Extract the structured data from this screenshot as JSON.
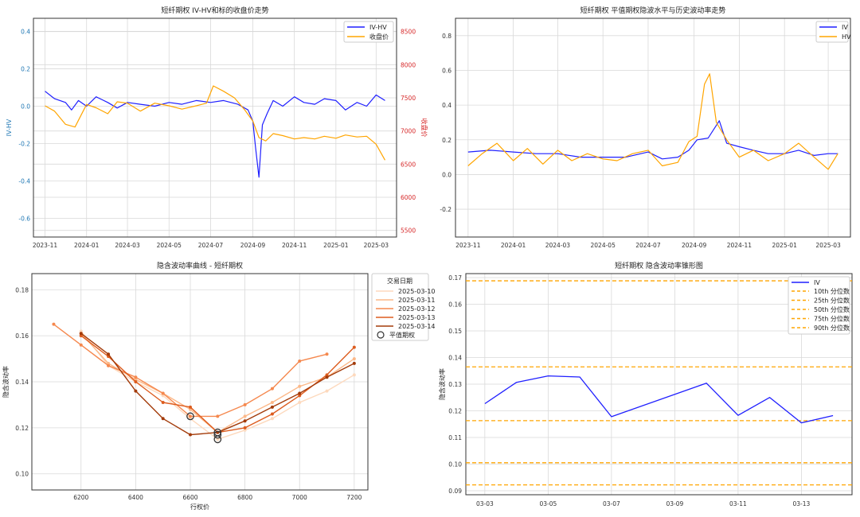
{
  "chart_data": [
    {
      "type": "line",
      "title": "短纤期权 IV-HV和标的收盘价走势",
      "ylabel": "IV-HV",
      "y2label": "收盘价",
      "xticks": [
        "2023-11",
        "2024-01",
        "2024-03",
        "2024-05",
        "2024-07",
        "2024-09",
        "2024-11",
        "2025-01",
        "2025-03"
      ],
      "ylim": [
        -0.7,
        0.47
      ],
      "yticks": [
        -0.6,
        -0.4,
        -0.2,
        0.0,
        0.2,
        0.4
      ],
      "ytick_labels": [
        "-0.6",
        "-0.4",
        "-0.2",
        "0.0",
        "0.2",
        "0.4"
      ],
      "y2lim": [
        5400,
        8700
      ],
      "y2ticks": [
        5500,
        6000,
        6500,
        7000,
        7500,
        8000,
        8500
      ],
      "legend": [
        "IV-HV",
        "收盘价"
      ],
      "legend_loc": "upper right",
      "grid": true,
      "series": [
        {
          "name": "IV-HV",
          "color": "#1f1fff",
          "axis": "left",
          "x": [
            "2023-11-01",
            "2023-11-15",
            "2023-12-01",
            "2023-12-10",
            "2023-12-20",
            "2024-01-01",
            "2024-01-15",
            "2024-02-01",
            "2024-02-15",
            "2024-03-01",
            "2024-03-20",
            "2024-04-10",
            "2024-05-01",
            "2024-05-20",
            "2024-06-10",
            "2024-07-01",
            "2024-07-20",
            "2024-08-10",
            "2024-08-25",
            "2024-09-01",
            "2024-09-05",
            "2024-09-10",
            "2024-09-15",
            "2024-09-22",
            "2024-10-01",
            "2024-10-15",
            "2024-11-01",
            "2024-11-15",
            "2024-12-01",
            "2024-12-15",
            "2025-01-01",
            "2025-01-15",
            "2025-02-01",
            "2025-02-15",
            "2025-03-01",
            "2025-03-14"
          ],
          "y": [
            0.08,
            0.04,
            0.02,
            -0.02,
            0.03,
            0.0,
            0.05,
            0.02,
            -0.01,
            0.02,
            0.01,
            0.0,
            0.02,
            0.01,
            0.03,
            0.02,
            0.03,
            0.01,
            -0.02,
            -0.08,
            -0.22,
            -0.38,
            -0.1,
            -0.04,
            0.03,
            0.0,
            0.05,
            0.02,
            0.01,
            0.04,
            0.03,
            -0.02,
            0.02,
            0.0,
            0.06,
            0.03
          ]
        },
        {
          "name": "收盘价",
          "color": "#ffa500",
          "axis": "right",
          "x": [
            "2023-11-01",
            "2023-11-15",
            "2023-12-01",
            "2023-12-15",
            "2024-01-01",
            "2024-01-15",
            "2024-02-01",
            "2024-02-15",
            "2024-03-01",
            "2024-03-20",
            "2024-04-10",
            "2024-05-01",
            "2024-05-20",
            "2024-06-10",
            "2024-06-25",
            "2024-07-05",
            "2024-07-20",
            "2024-08-05",
            "2024-08-20",
            "2024-09-01",
            "2024-09-10",
            "2024-09-20",
            "2024-10-01",
            "2024-10-15",
            "2024-11-01",
            "2024-11-15",
            "2024-12-01",
            "2024-12-15",
            "2025-01-01",
            "2025-01-15",
            "2025-02-01",
            "2025-02-15",
            "2025-03-01",
            "2025-03-14"
          ],
          "y": [
            7380,
            7300,
            7100,
            7060,
            7400,
            7350,
            7260,
            7440,
            7420,
            7300,
            7420,
            7380,
            7330,
            7380,
            7420,
            7680,
            7600,
            7500,
            7320,
            7150,
            6900,
            6850,
            6960,
            6930,
            6880,
            6900,
            6880,
            6920,
            6890,
            6940,
            6910,
            6920,
            6800,
            6560
          ]
        }
      ]
    },
    {
      "type": "line",
      "title": "短纤期权 平值期权隐波水平与历史波动率走势",
      "xticks": [
        "2023-11",
        "2024-01",
        "2024-03",
        "2024-05",
        "2024-07",
        "2024-09",
        "2024-11",
        "2025-01",
        "2025-03"
      ],
      "ylim": [
        -0.36,
        0.9
      ],
      "yticks": [
        -0.2,
        0.0,
        0.2,
        0.4,
        0.6,
        0.8
      ],
      "ytick_labels": [
        "-0.2",
        "0.0",
        "0.2",
        "0.4",
        "0.6",
        "0.8"
      ],
      "legend": [
        "IV",
        "HV"
      ],
      "legend_loc": "upper right",
      "grid": true,
      "series": [
        {
          "name": "IV",
          "color": "#1f1fff",
          "x": [
            "2023-11-01",
            "2023-12-01",
            "2024-01-01",
            "2024-02-01",
            "2024-03-01",
            "2024-04-01",
            "2024-05-01",
            "2024-06-01",
            "2024-07-01",
            "2024-07-20",
            "2024-08-10",
            "2024-08-25",
            "2024-09-05",
            "2024-09-20",
            "2024-10-05",
            "2024-10-15",
            "2024-11-01",
            "2024-11-20",
            "2024-12-10",
            "2025-01-01",
            "2025-01-20",
            "2025-02-10",
            "2025-03-01",
            "2025-03-14"
          ],
          "y": [
            0.13,
            0.14,
            0.13,
            0.12,
            0.12,
            0.1,
            0.1,
            0.1,
            0.13,
            0.09,
            0.1,
            0.14,
            0.2,
            0.21,
            0.31,
            0.18,
            0.16,
            0.14,
            0.12,
            0.12,
            0.14,
            0.11,
            0.12,
            0.12
          ]
        },
        {
          "name": "HV",
          "color": "#ffa500",
          "x": [
            "2023-11-01",
            "2023-11-20",
            "2023-12-10",
            "2024-01-01",
            "2024-01-20",
            "2024-02-10",
            "2024-03-01",
            "2024-03-20",
            "2024-04-10",
            "2024-05-01",
            "2024-05-20",
            "2024-06-10",
            "2024-07-01",
            "2024-07-20",
            "2024-08-10",
            "2024-08-25",
            "2024-09-05",
            "2024-09-15",
            "2024-09-22",
            "2024-10-01",
            "2024-10-15",
            "2024-11-01",
            "2024-11-20",
            "2024-12-10",
            "2025-01-01",
            "2025-01-20",
            "2025-02-10",
            "2025-03-01",
            "2025-03-14"
          ],
          "y": [
            0.05,
            0.12,
            0.18,
            0.08,
            0.15,
            0.06,
            0.14,
            0.08,
            0.12,
            0.09,
            0.08,
            0.12,
            0.14,
            0.05,
            0.07,
            0.19,
            0.22,
            0.52,
            0.58,
            0.3,
            0.2,
            0.1,
            0.14,
            0.08,
            0.12,
            0.18,
            0.1,
            0.03,
            0.12
          ]
        }
      ]
    },
    {
      "type": "line",
      "title": "隐含波动率曲线 - 短纤期权",
      "xlabel": "行权价",
      "ylabel": "隐含波动率",
      "xlim": [
        6020,
        7250
      ],
      "xticks": [
        6200,
        6400,
        6600,
        6800,
        7000,
        7200
      ],
      "ylim": [
        0.093,
        0.187
      ],
      "yticks": [
        0.1,
        0.12,
        0.14,
        0.16,
        0.18
      ],
      "ytick_labels": [
        "0.10",
        "0.12",
        "0.14",
        "0.16",
        "0.18"
      ],
      "legend_title": "交易日期",
      "legend_loc": "outside upper right",
      "legend_atm_label": "平值期权",
      "grid": true,
      "series": [
        {
          "name": "2025-03-10",
          "color": "#fdd9bd",
          "x": [
            6200,
            6300,
            6400,
            6500,
            6600,
            6700,
            6800,
            6900,
            7000,
            7100,
            7200
          ],
          "y": [
            0.162,
            0.147,
            0.14,
            0.134,
            0.124,
            0.115,
            0.119,
            0.124,
            0.131,
            0.136,
            0.143
          ]
        },
        {
          "name": "2025-03-11",
          "color": "#fcb888",
          "x": [
            6200,
            6300,
            6400,
            6500,
            6600,
            6700,
            6800,
            6900,
            7000,
            7100,
            7200
          ],
          "y": [
            0.161,
            0.148,
            0.141,
            0.135,
            0.128,
            0.118,
            0.125,
            0.131,
            0.138,
            0.142,
            0.15
          ]
        },
        {
          "name": "2025-03-12",
          "color": "#f5884e",
          "x": [
            6100,
            6200,
            6300,
            6400,
            6500,
            6600,
            6700,
            6800,
            6900,
            7000,
            7100
          ],
          "y": [
            0.165,
            0.156,
            0.147,
            0.142,
            0.135,
            0.125,
            0.125,
            0.13,
            0.137,
            0.149,
            0.152
          ]
        },
        {
          "name": "2025-03-13",
          "color": "#dd5c1e",
          "x": [
            6200,
            6300,
            6400,
            6500,
            6600,
            6700,
            6800,
            6900,
            7000,
            7100,
            7200
          ],
          "y": [
            0.16,
            0.151,
            0.14,
            0.131,
            0.129,
            0.118,
            0.12,
            0.126,
            0.134,
            0.143,
            0.155
          ]
        },
        {
          "name": "2025-03-14",
          "color": "#a33b0a",
          "x": [
            6200,
            6300,
            6400,
            6500,
            6600,
            6700,
            6800,
            6900,
            7000,
            7100,
            7200
          ],
          "y": [
            0.161,
            0.152,
            0.136,
            0.124,
            0.117,
            0.118,
            0.123,
            0.129,
            0.135,
            0.142,
            0.148
          ]
        }
      ],
      "atm_points": [
        {
          "x": 6600,
          "y": 0.125
        },
        {
          "x": 6700,
          "y": 0.118
        },
        {
          "x": 6700,
          "y": 0.117
        },
        {
          "x": 6700,
          "y": 0.115
        }
      ]
    },
    {
      "type": "line",
      "title": "短纤期权 隐含波动率锥形图",
      "ylabel": "隐含波动率",
      "categories": [
        "03-03",
        "03-04",
        "03-05",
        "03-06",
        "03-07",
        "03-08",
        "03-09",
        "03-10",
        "03-11",
        "03-12",
        "03-13",
        "03-14"
      ],
      "xticks": [
        "03-03",
        "03-05",
        "03-07",
        "03-09",
        "03-11",
        "03-13"
      ],
      "ylim": [
        0.0885,
        0.1715
      ],
      "yticks": [
        0.09,
        0.1,
        0.11,
        0.12,
        0.13,
        0.14,
        0.15,
        0.16,
        0.17
      ],
      "ytick_labels": [
        "0.09",
        "0.10",
        "0.11",
        "0.12",
        "0.13",
        "0.14",
        "0.15",
        "0.16",
        "0.17"
      ],
      "legend_loc": "upper right",
      "grid": true,
      "series": [
        {
          "name": "IV",
          "color": "#1f1fff",
          "x": [
            "03-03",
            "03-04",
            "03-05",
            "03-06",
            "03-07",
            "03-10",
            "03-11",
            "03-12",
            "03-13",
            "03-14"
          ],
          "y": [
            0.1227,
            0.1307,
            0.1331,
            0.1327,
            0.1178,
            0.1304,
            0.1183,
            0.125,
            0.1155,
            0.1182
          ]
        }
      ],
      "percentiles": [
        {
          "name": "10th 分位数",
          "value": 0.0922
        },
        {
          "name": "25th 分位数",
          "value": 0.1005
        },
        {
          "name": "50th 分位数",
          "value": 0.1163
        },
        {
          "name": "75th 分位数",
          "value": 0.1365
        },
        {
          "name": "90th 分位数",
          "value": 0.1688
        }
      ],
      "percentile_color": "#ffa500"
    }
  ]
}
